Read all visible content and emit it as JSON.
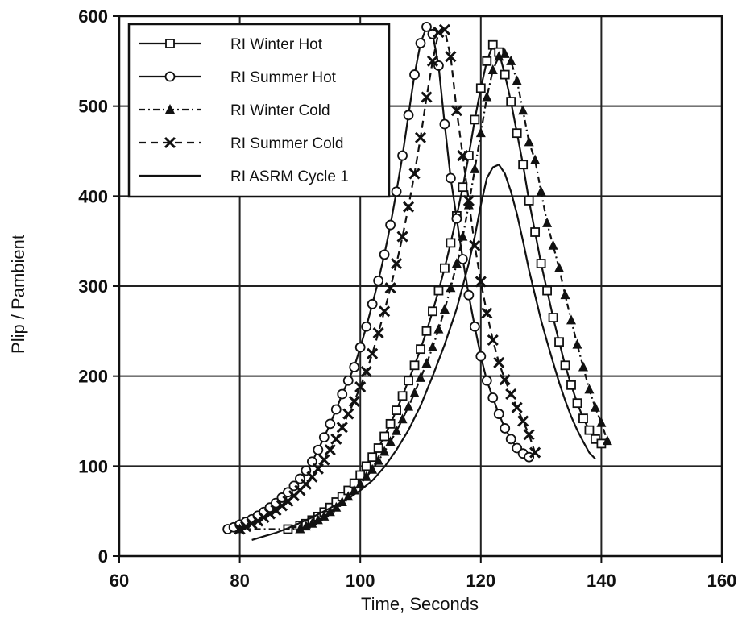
{
  "chart_data": {
    "type": "line",
    "xlabel": "Time, Seconds",
    "ylabel": "Plip / Pambient",
    "xlim": [
      60,
      160
    ],
    "ylim": [
      0,
      600
    ],
    "xticks": [
      60,
      80,
      100,
      120,
      140,
      160
    ],
    "yticks": [
      0,
      100,
      200,
      300,
      400,
      500,
      600
    ],
    "grid": true,
    "legend_position": "top-left",
    "series": [
      {
        "name": "RI Winter Hot",
        "marker": "square",
        "dash": "solid",
        "color": "#111111",
        "x": [
          88,
          90,
          91,
          92,
          93,
          94,
          95,
          96,
          97,
          98,
          99,
          100,
          101,
          102,
          103,
          104,
          105,
          106,
          107,
          108,
          109,
          110,
          111,
          112,
          113,
          114,
          115,
          116,
          117,
          118,
          119,
          120,
          121,
          122,
          123,
          124,
          125,
          126,
          127,
          128,
          129,
          130,
          131,
          132,
          133,
          134,
          135,
          136,
          137,
          138,
          139,
          140
        ],
        "y": [
          30,
          34,
          36,
          40,
          44,
          49,
          54,
          60,
          66,
          73,
          81,
          90,
          100,
          110,
          120,
          133,
          147,
          162,
          178,
          195,
          212,
          230,
          250,
          272,
          295,
          320,
          348,
          378,
          410,
          445,
          485,
          520,
          550,
          568,
          560,
          535,
          505,
          470,
          435,
          395,
          360,
          325,
          295,
          265,
          238,
          212,
          190,
          170,
          153,
          140,
          130,
          125
        ]
      },
      {
        "name": "RI Summer Hot",
        "marker": "circle",
        "dash": "solid",
        "color": "#111111",
        "x": [
          78,
          79,
          80,
          81,
          82,
          83,
          84,
          85,
          86,
          87,
          88,
          89,
          90,
          91,
          92,
          93,
          94,
          95,
          96,
          97,
          98,
          99,
          100,
          101,
          102,
          103,
          104,
          105,
          106,
          107,
          108,
          109,
          110,
          111,
          112,
          113,
          114,
          115,
          116,
          117,
          118,
          119,
          120,
          121,
          122,
          123,
          124,
          125,
          126,
          127,
          128
        ],
        "y": [
          30,
          32,
          35,
          38,
          41,
          45,
          49,
          54,
          59,
          65,
          71,
          78,
          86,
          95,
          105,
          118,
          132,
          147,
          163,
          180,
          195,
          210,
          232,
          255,
          280,
          306,
          335,
          368,
          405,
          445,
          490,
          535,
          570,
          588,
          580,
          545,
          480,
          420,
          375,
          330,
          290,
          255,
          222,
          195,
          176,
          158,
          142,
          130,
          120,
          114,
          110
        ]
      },
      {
        "name": "RI Winter Cold",
        "marker": "triangle",
        "dash": "dashdot",
        "color": "#111111",
        "x": [
          80,
          90,
          91,
          92,
          93,
          94,
          95,
          96,
          97,
          98,
          99,
          100,
          101,
          102,
          103,
          104,
          105,
          106,
          107,
          108,
          109,
          110,
          111,
          112,
          113,
          114,
          115,
          116,
          117,
          118,
          119,
          120,
          121,
          122,
          123,
          124,
          125,
          126,
          127,
          128,
          129,
          130,
          131,
          132,
          133,
          134,
          135,
          136,
          137,
          138,
          139,
          140,
          141
        ],
        "y": [
          30,
          30,
          33,
          36,
          40,
          44,
          49,
          54,
          60,
          66,
          73,
          80,
          88,
          96,
          106,
          116,
          127,
          139,
          152,
          166,
          181,
          198,
          214,
          232,
          252,
          274,
          298,
          325,
          355,
          390,
          430,
          470,
          510,
          540,
          555,
          558,
          550,
          528,
          495,
          460,
          440,
          405,
          370,
          345,
          320,
          290,
          262,
          235,
          210,
          185,
          165,
          148,
          128
        ]
      },
      {
        "name": "RI Summer Cold",
        "marker": "x",
        "dash": "dashed",
        "color": "#111111",
        "x": [
          80,
          81,
          82,
          83,
          84,
          85,
          86,
          87,
          88,
          89,
          90,
          91,
          92,
          93,
          94,
          95,
          96,
          97,
          98,
          99,
          100,
          101,
          102,
          103,
          104,
          105,
          106,
          107,
          108,
          109,
          110,
          111,
          112,
          113,
          114,
          115,
          116,
          117,
          118,
          119,
          120,
          121,
          122,
          123,
          124,
          125,
          126,
          127,
          128,
          129
        ],
        "y": [
          30,
          33,
          36,
          39,
          43,
          47,
          51,
          56,
          61,
          67,
          73,
          80,
          88,
          97,
          107,
          118,
          130,
          143,
          158,
          172,
          188,
          205,
          225,
          248,
          272,
          298,
          325,
          355,
          388,
          425,
          465,
          510,
          550,
          582,
          585,
          555,
          495,
          445,
          395,
          345,
          305,
          270,
          240,
          215,
          196,
          180,
          165,
          150,
          135,
          115
        ]
      },
      {
        "name": "RI ASRM Cycle 1",
        "marker": "none",
        "dash": "solid",
        "color": "#111111",
        "x": [
          82,
          84,
          86,
          88,
          90,
          92,
          94,
          96,
          98,
          100,
          102,
          104,
          106,
          108,
          110,
          112,
          114,
          116,
          117,
          118,
          119,
          120,
          121,
          122,
          123,
          124,
          125,
          126,
          127,
          128,
          129,
          130,
          131,
          132,
          133,
          134,
          135,
          136,
          137,
          138,
          139
        ],
        "y": [
          18,
          22,
          26,
          31,
          37,
          43,
          50,
          57,
          64,
          73,
          84,
          99,
          118,
          140,
          167,
          200,
          235,
          275,
          300,
          325,
          355,
          390,
          420,
          432,
          435,
          425,
          405,
          380,
          350,
          318,
          290,
          262,
          238,
          215,
          193,
          173,
          155,
          140,
          127,
          115,
          108
        ]
      }
    ]
  }
}
